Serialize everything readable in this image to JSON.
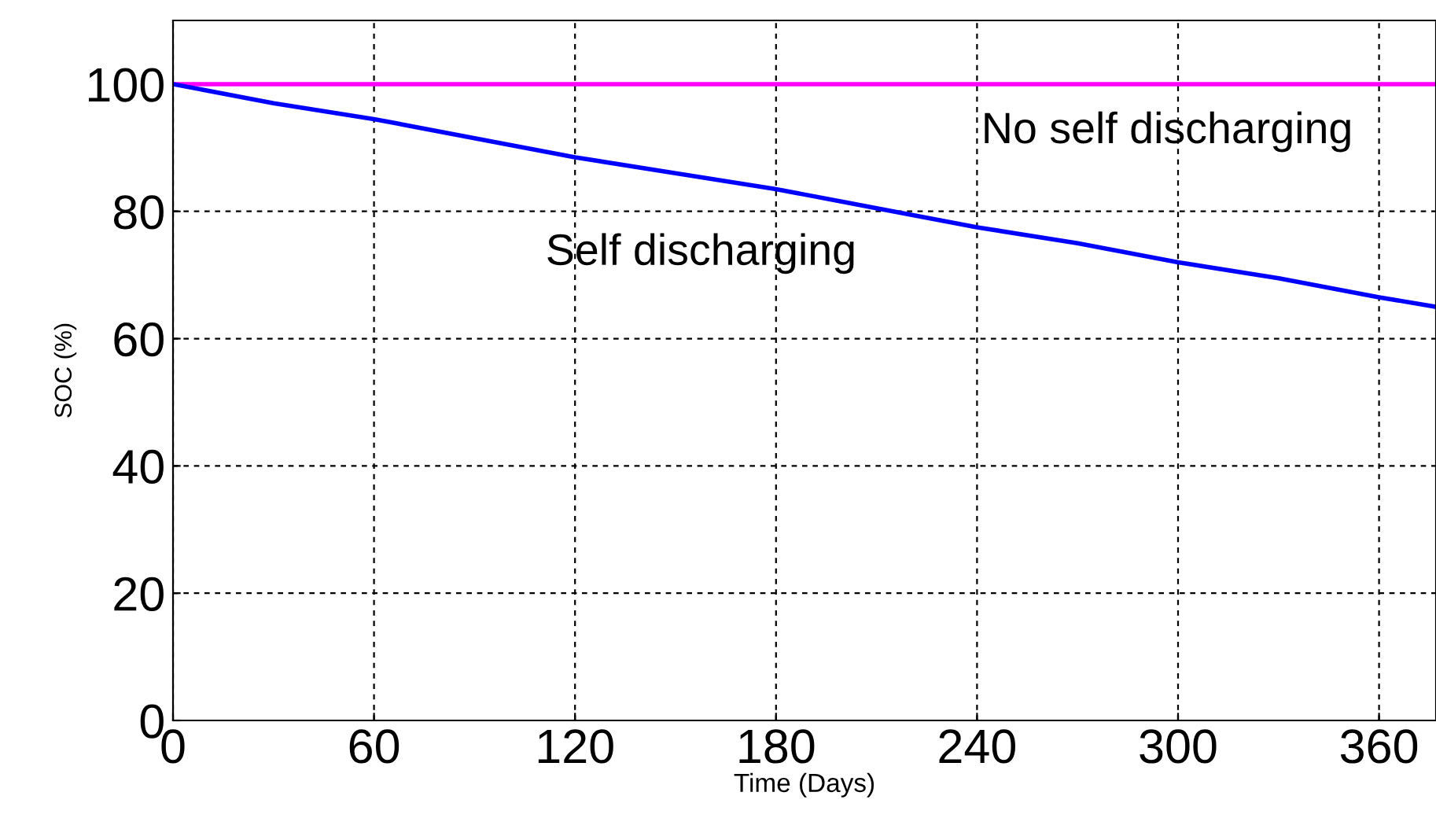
{
  "chart_data": {
    "type": "line",
    "xlabel": "Time (Days)",
    "ylabel": "SOC (%)",
    "xlim": [
      0,
      377
    ],
    "ylim": [
      0,
      110
    ],
    "xticks": [
      0,
      60,
      120,
      180,
      240,
      300,
      360
    ],
    "yticks": [
      0,
      20,
      40,
      60,
      80,
      100
    ],
    "grid": true,
    "legend": false,
    "series": [
      {
        "name": "No self discharging",
        "color": "#ff00ff",
        "x": [
          0,
          377
        ],
        "values": [
          100,
          100
        ]
      },
      {
        "name": "Self discharging",
        "color": "#0000ff",
        "x": [
          0,
          30,
          60,
          90,
          120,
          150,
          180,
          210,
          240,
          270,
          300,
          330,
          360,
          377
        ],
        "values": [
          100,
          97,
          94.5,
          91.5,
          88.5,
          86,
          83.5,
          80.5,
          77.5,
          75,
          72,
          69.5,
          66.5,
          65
        ]
      }
    ]
  }
}
